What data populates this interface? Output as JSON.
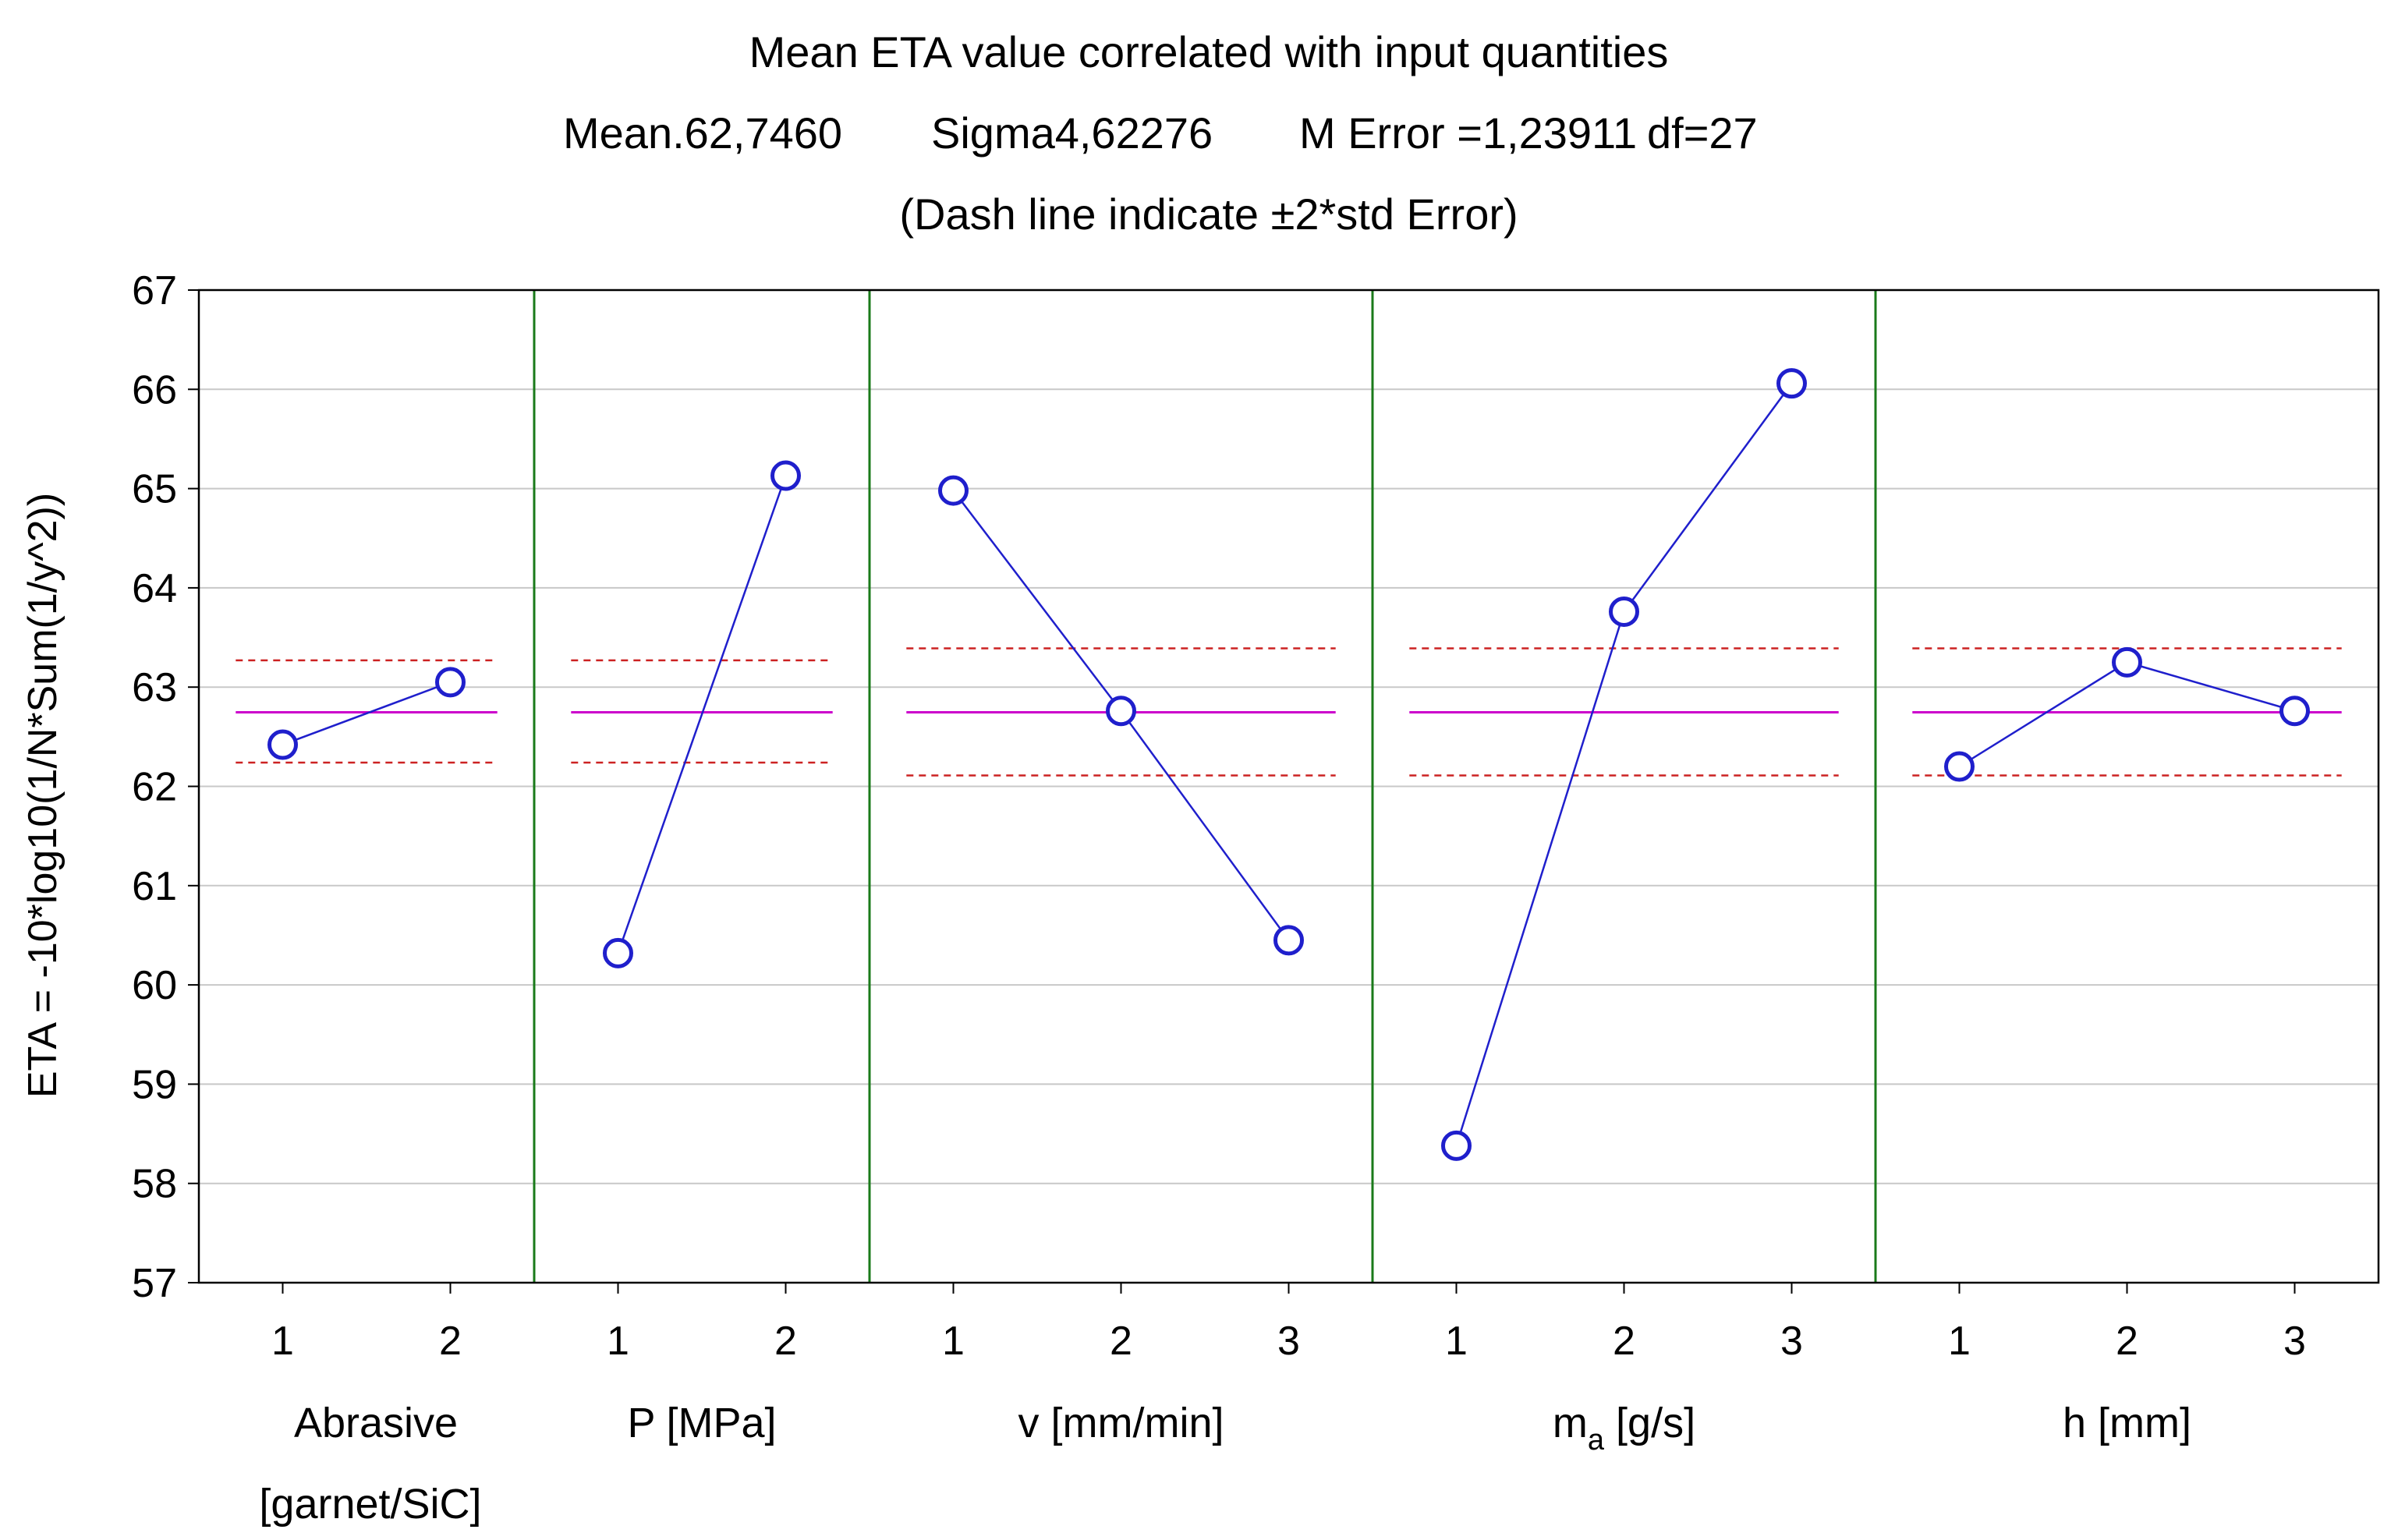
{
  "chart_data": {
    "type": "line",
    "title": "Mean ETA value correlated with input quantities",
    "subtitle_stats": {
      "mean": "Mean.62,7460",
      "sigma": "Sigma4,62276",
      "m_error": "M Error =1,23911",
      "df": "df=27"
    },
    "subtitle_note": "(Dash line indicate ±2*std Error)",
    "ylabel": "ETA = -10*log10(1/N*Sum(1/y^2))",
    "ylim": [
      57,
      67
    ],
    "yticks": [
      57,
      58,
      59,
      60,
      61,
      62,
      63,
      64,
      65,
      66,
      67
    ],
    "grid": true,
    "mean_value": 62.746,
    "factors": [
      {
        "label": "Abrasive",
        "label_line2": "[garnet/SiC]",
        "levels": [
          "1",
          "2"
        ],
        "values": [
          62.42,
          63.05
        ],
        "band": [
          62.24,
          63.27
        ]
      },
      {
        "label": "P [MPa]",
        "label_line2": "",
        "levels": [
          "1",
          "2"
        ],
        "values": [
          60.32,
          65.13
        ],
        "band": [
          62.24,
          63.27
        ]
      },
      {
        "label": "v [mm/min]",
        "label_line2": "",
        "levels": [
          "1",
          "2",
          "3"
        ],
        "values": [
          64.98,
          62.76,
          60.45
        ],
        "band": [
          62.11,
          63.39
        ]
      },
      {
        "label": "m",
        "label_sub": "a",
        "label_rest": "[g/s]",
        "label_line2": "",
        "levels": [
          "1",
          "2",
          "3"
        ],
        "values": [
          58.38,
          63.76,
          66.06
        ],
        "band": [
          62.11,
          63.39
        ]
      },
      {
        "label": "h [mm]",
        "label_line2": "",
        "levels": [
          "1",
          "2",
          "3"
        ],
        "values": [
          62.2,
          63.25,
          62.76
        ],
        "band": [
          62.11,
          63.39
        ]
      }
    ],
    "colors": {
      "series": "#1f1fcc",
      "mean_line": "#cc00cc",
      "band_line": "#cc2222",
      "divider": "#1a7a1a",
      "grid": "#c8c8c8",
      "frame": "#000000"
    }
  }
}
